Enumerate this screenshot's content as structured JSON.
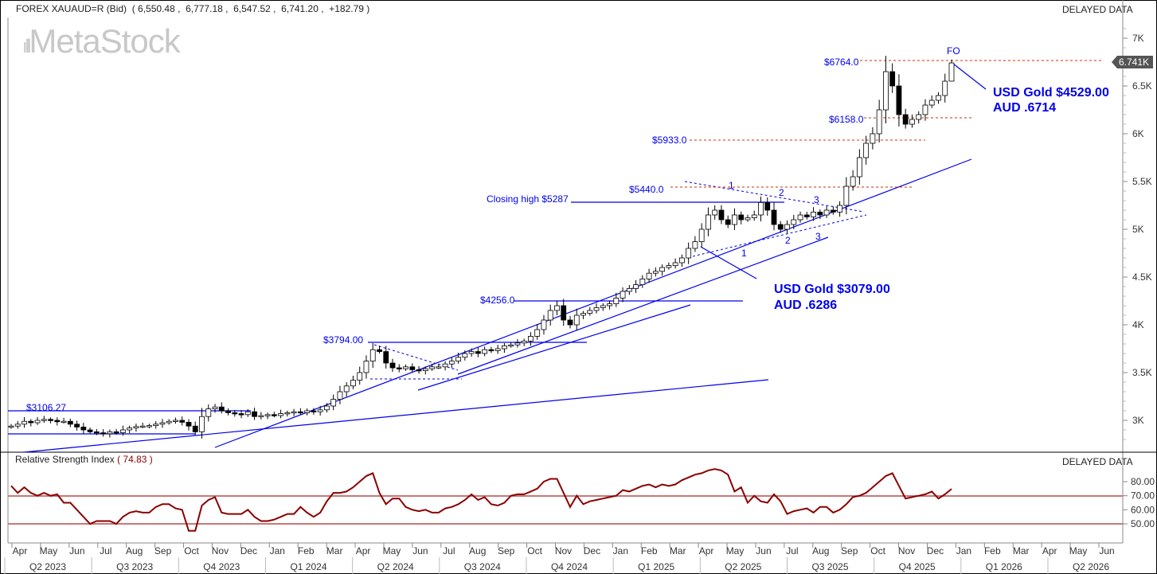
{
  "header": {
    "symbol": "FOREX XAUAUD=R (Bid)",
    "ohlc": "( 6,550.48 ,  6,777.18 ,  6,547.52 ,  6,741.20 ,  +182.79 )",
    "delayed_top": "DELAYED DATA",
    "delayed_rsi": "DELAYED DATA",
    "watermark": "MetaStock"
  },
  "rsi_header": {
    "label": "Relative Strength Index",
    "value": "( 74.83 )"
  },
  "last_price_tag": "6.741K",
  "annotations": {
    "h6764": "$6764.0",
    "fo": "FO",
    "gold_top_1": "USD Gold $4529.00",
    "gold_top_2": "AUD .6714",
    "h6158": "$6158.0",
    "h5933": "$5933.0",
    "h5440": "$5440.0",
    "closing_high": "Closing high $5287",
    "h4256": "$4256.0",
    "h3794": "$3794.00",
    "h3106": "$3106.27",
    "gold_mid_1": "USD Gold $3079.00",
    "gold_mid_2": "AUD .6286",
    "wave_upper": [
      "1",
      "2",
      "3"
    ],
    "wave_lower": [
      "1",
      "2",
      "3"
    ]
  },
  "colors": {
    "up_fill": "#ffffff",
    "down_fill": "#000000",
    "annotation": "#0000ee",
    "level_line": "#cc3300",
    "rsi_line": "#8b0000",
    "rsi_band": "#c87878"
  },
  "chart_data": [
    {
      "type": "candlestick",
      "title": "FOREX XAUAUD=R (Bid)",
      "interval": "weekly",
      "ylabel": "",
      "ylim": [
        2750,
        7150
      ],
      "yticks": [
        "7K",
        "6.5K",
        "6K",
        "5.5K",
        "5K",
        "4.5K",
        "4K",
        "3.5K",
        "3K"
      ],
      "ytick_values": [
        7000,
        6500,
        6000,
        5500,
        5000,
        4500,
        4000,
        3500,
        3000
      ],
      "first_open": 2930,
      "closes": [
        2940,
        2960,
        2990,
        2975,
        3000,
        3010,
        3000,
        2985,
        2990,
        2960,
        2930,
        2900,
        2880,
        2870,
        2860,
        2880,
        2870,
        2900,
        2920,
        2935,
        2940,
        2945,
        2960,
        2975,
        2990,
        3000,
        2980,
        2940,
        2880,
        3040,
        3120,
        3140,
        3100,
        3080,
        3070,
        3060,
        3090,
        3040,
        3050,
        3060,
        3050,
        3070,
        3080,
        3090,
        3080,
        3100,
        3090,
        3110,
        3150,
        3220,
        3300,
        3360,
        3420,
        3500,
        3620,
        3740,
        3720,
        3600,
        3550,
        3540,
        3560,
        3530,
        3520,
        3540,
        3560,
        3560,
        3590,
        3620,
        3660,
        3700,
        3720,
        3700,
        3740,
        3730,
        3750,
        3780,
        3790,
        3810,
        3830,
        3880,
        3950,
        4050,
        4150,
        4200,
        4050,
        4000,
        4100,
        4120,
        4150,
        4180,
        4200,
        4220,
        4280,
        4350,
        4380,
        4420,
        4480,
        4540,
        4560,
        4600,
        4620,
        4650,
        4700,
        4800,
        4870,
        5000,
        5150,
        5200,
        5100,
        5050,
        5150,
        5100,
        5120,
        5150,
        5280,
        5200,
        5050,
        5000,
        5050,
        5100,
        5150,
        5130,
        5180,
        5150,
        5200,
        5180,
        5250,
        5450,
        5550,
        5750,
        5900,
        6000,
        6250,
        6650,
        6500,
        6200,
        6100,
        6150,
        6200,
        6300,
        6350,
        6400,
        6550,
        6741.2
      ],
      "last_bar": {
        "open": 6550.48,
        "high": 6777.18,
        "low": 6547.52,
        "close": 6741.2,
        "change": 182.79
      }
    },
    {
      "type": "line",
      "title": "Relative Strength Index",
      "last_value": 74.83,
      "ylim": [
        38,
        92
      ],
      "yticks": [
        "80.00",
        "70.00",
        "60.00",
        "50.00"
      ],
      "ytick_values": [
        80,
        70,
        60,
        50
      ],
      "bands": [
        70,
        50
      ],
      "values": [
        77,
        72,
        76,
        72,
        70,
        72,
        70,
        71,
        65,
        65,
        60,
        55,
        50,
        52,
        52,
        52,
        50,
        55,
        58,
        59,
        58,
        58,
        62,
        64,
        64,
        61,
        60,
        45,
        45,
        63,
        67,
        69,
        58,
        57,
        57,
        57,
        60,
        55,
        52,
        52,
        53,
        55,
        57,
        57,
        62,
        58,
        55,
        58,
        66,
        72,
        72,
        73,
        76,
        80,
        84,
        86,
        72,
        64,
        68,
        68,
        62,
        60,
        59,
        60,
        58,
        58,
        61,
        62,
        64,
        67,
        71,
        67,
        69,
        64,
        63,
        65,
        70,
        71,
        71,
        73,
        75,
        80,
        82,
        82,
        72,
        62,
        70,
        64,
        66,
        67,
        68,
        69,
        70,
        74,
        73,
        75,
        77,
        78,
        76,
        78,
        77,
        78,
        81,
        83,
        85,
        86,
        88,
        89,
        88,
        85,
        73,
        76,
        65,
        70,
        66,
        65,
        71,
        66,
        57,
        59,
        60,
        61,
        58,
        62,
        62,
        58,
        60,
        64,
        69,
        70,
        72,
        76,
        80,
        84,
        86,
        77,
        68,
        69,
        70,
        71,
        73,
        68,
        71,
        74.83
      ]
    }
  ],
  "time_axis": {
    "months": [
      "Apr",
      "May",
      "Jun",
      "Jul",
      "Aug",
      "Sep",
      "Oct",
      "Nov",
      "Dec",
      "Jan",
      "Feb",
      "Mar",
      "Apr",
      "May",
      "Jun",
      "Jul",
      "Aug",
      "Sep",
      "Oct",
      "Nov",
      "Dec",
      "Jan",
      "Feb",
      "Mar",
      "Apr",
      "May",
      "Jun",
      "Jul",
      "Aug",
      "Sep",
      "Oct",
      "Nov",
      "Dec",
      "Jan",
      "Feb",
      "Mar",
      "Apr",
      "May",
      "Jun"
    ],
    "quarters": [
      "Q2 2023",
      "Q3 2023",
      "Q4 2023",
      "Q1 2024",
      "Q2 2024",
      "Q3 2024",
      "Q4 2024",
      "Q1 2025",
      "Q2 2025",
      "Q3 2025",
      "Q4 2025",
      "Q1 2026",
      "Q2 2026"
    ]
  }
}
